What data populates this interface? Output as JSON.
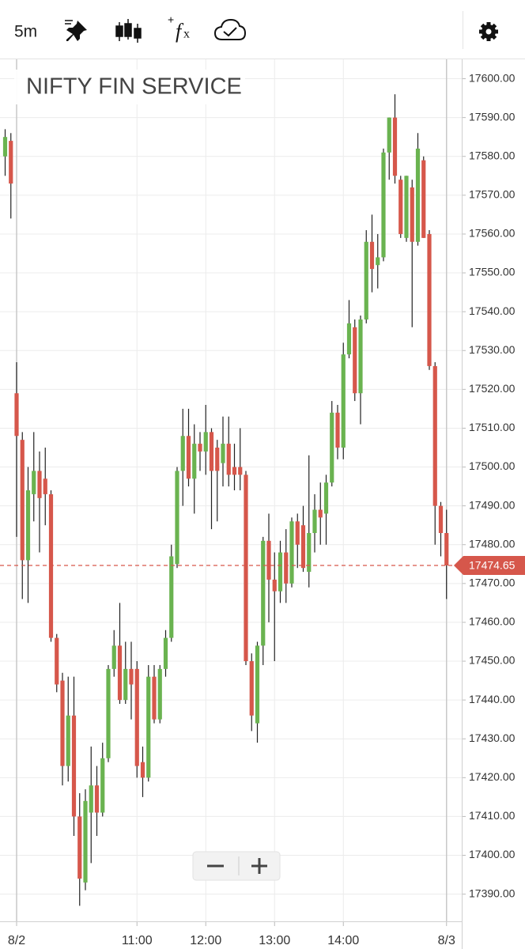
{
  "toolbar": {
    "interval": "5m"
  },
  "chart_data": {
    "type": "candlestick",
    "title": "NIFTY FIN SERVICE",
    "categories": [
      null,
      null,
      "8/2",
      null,
      null,
      null,
      null,
      null,
      null,
      null,
      null,
      null,
      null,
      null,
      null,
      null,
      null,
      null,
      null,
      null,
      null,
      null,
      null,
      "11:00",
      null,
      null,
      null,
      null,
      null,
      null,
      null,
      null,
      null,
      null,
      null,
      "12:00",
      null,
      null,
      null,
      null,
      null,
      null,
      null,
      null,
      null,
      null,
      null,
      "13:00",
      null,
      null,
      null,
      null,
      null,
      null,
      null,
      null,
      null,
      null,
      null,
      "14:00",
      null,
      null,
      null,
      null,
      null,
      null,
      null,
      null,
      null,
      null,
      null,
      null,
      null,
      null,
      null,
      null,
      null,
      "8/3"
    ],
    "open": [
      17580,
      17584,
      17519,
      17507,
      17476,
      17493,
      17499,
      17497,
      17493,
      17456,
      17445,
      17423,
      17436,
      17410,
      17393,
      17411,
      17418,
      17411,
      17425,
      17448,
      17454,
      17440,
      17448,
      17448,
      17424,
      17420,
      17446,
      17435,
      17448,
      17456,
      17475,
      17499,
      17508,
      17497,
      17506,
      17504,
      17509,
      17505,
      17501,
      17506,
      17500,
      17500,
      17498,
      17450,
      17434,
      17454,
      17481,
      17471,
      17468,
      17478,
      17470,
      17486,
      17485,
      17473,
      17483,
      17489,
      17488,
      17496,
      17514,
      17505,
      17529,
      17536,
      17519,
      17538,
      17558,
      17552,
      17554,
      17581,
      17590,
      17574,
      17559,
      17572,
      17558,
      17579,
      17560,
      17526,
      17490,
      17483
    ],
    "high": [
      17587,
      17586,
      17527,
      17509,
      17500,
      17509,
      17504,
      17505,
      17494,
      17457,
      17447,
      17446,
      17446,
      17416,
      17417,
      17428,
      17423,
      17429,
      17449,
      17458,
      17465,
      17455,
      17455,
      17450,
      17428,
      17449,
      17449,
      17449,
      17458,
      17480,
      17500,
      17515,
      17515,
      17511,
      17509,
      17516,
      17510,
      17507,
      17513,
      17513,
      17506,
      17510,
      17499,
      17452,
      17455,
      17482,
      17488,
      17478,
      17481,
      17484,
      17487,
      17488,
      17490,
      17503,
      17493,
      17496,
      17498,
      17517,
      17516,
      17532,
      17543,
      17538,
      17539,
      17561,
      17565,
      17560,
      17582,
      17590,
      17596,
      17575,
      17575,
      17574,
      17586,
      17580,
      17561,
      17527,
      17491,
      17489
    ],
    "low": [
      17575,
      17564,
      17482,
      17466,
      17465,
      17486,
      17478,
      17485,
      17455,
      17442,
      17418,
      17419,
      17405,
      17387,
      17391,
      17398,
      17405,
      17410,
      17424,
      17446,
      17439,
      17439,
      17435,
      17420,
      17415,
      17419,
      17434,
      17434,
      17446,
      17455,
      17474,
      17490,
      17495,
      17488,
      17499,
      17498,
      17484,
      17486,
      17495,
      17495,
      17494,
      17494,
      17449,
      17432,
      17429,
      17449,
      17460,
      17450,
      17465,
      17465,
      17469,
      17474,
      17473,
      17469,
      17478,
      17480,
      17480,
      17495,
      17502,
      17502,
      17528,
      17517,
      17511,
      17537,
      17545,
      17546,
      17553,
      17574,
      17573,
      17559,
      17558,
      17536,
      17557,
      17559,
      17525,
      17480,
      17477,
      17466
    ],
    "close": [
      17585,
      17573,
      17508,
      17476,
      17494,
      17499,
      17492,
      17493,
      17456,
      17444,
      17423,
      17436,
      17410,
      17394,
      17414,
      17418,
      17411,
      17425,
      17448,
      17454,
      17440,
      17448,
      17444,
      17423,
      17420,
      17446,
      17435,
      17448,
      17456,
      17477,
      17499,
      17508,
      17497,
      17506,
      17504,
      17509,
      17499,
      17499,
      17506,
      17498,
      17498,
      17498,
      17450,
      17436,
      17454,
      17481,
      17471,
      17468,
      17478,
      17470,
      17486,
      17480,
      17474,
      17483,
      17489,
      17487,
      17496,
      17514,
      17505,
      17529,
      17537,
      17519,
      17538,
      17558,
      17551,
      17554,
      17581,
      17590,
      17575,
      17560,
      17575,
      17558,
      17582,
      17559,
      17526,
      17490,
      17483,
      17474.65
    ],
    "up_color": "#6ab350",
    "down_color": "#d6574b",
    "last_price": 17474.65,
    "ylim": [
      17383,
      17605
    ],
    "yticks": [
      {
        "value": 17390,
        "label": "17390.00"
      },
      {
        "value": 17400,
        "label": "17400.00"
      },
      {
        "value": 17410,
        "label": "17410.00"
      },
      {
        "value": 17420,
        "label": "17420.00"
      },
      {
        "value": 17430,
        "label": "17430.00"
      },
      {
        "value": 17440,
        "label": "17440.00"
      },
      {
        "value": 17450,
        "label": "17450.00"
      },
      {
        "value": 17460,
        "label": "17460.00"
      },
      {
        "value": 17470,
        "label": "17470.00"
      },
      {
        "value": 17480,
        "label": "17480.00"
      },
      {
        "value": 17490,
        "label": "17490.00"
      },
      {
        "value": 17500,
        "label": "17500.00"
      },
      {
        "value": 17510,
        "label": "17510.00"
      },
      {
        "value": 17520,
        "label": "17520.00"
      },
      {
        "value": 17530,
        "label": "17530.00"
      },
      {
        "value": 17540,
        "label": "17540.00"
      },
      {
        "value": 17550,
        "label": "17550.00"
      },
      {
        "value": 17560,
        "label": "17560.00"
      },
      {
        "value": 17570,
        "label": "17570.00"
      },
      {
        "value": 17580,
        "label": "17580.00"
      },
      {
        "value": 17590,
        "label": "17590.00"
      },
      {
        "value": 17600,
        "label": "17600.00"
      }
    ],
    "grid": true
  }
}
